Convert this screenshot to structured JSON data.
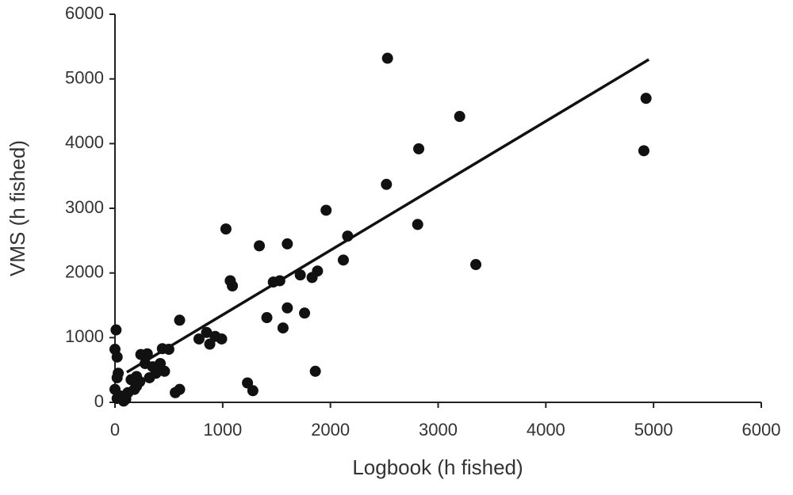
{
  "chart_data": {
    "type": "scatter",
    "x_label": "Logbook (h fished)",
    "y_label": "VMS (h fished)",
    "xlim": [
      0,
      6000
    ],
    "ylim": [
      0,
      6000
    ],
    "xticks": [
      0,
      1000,
      2000,
      3000,
      4000,
      5000,
      6000
    ],
    "yticks": [
      0,
      1000,
      2000,
      3000,
      4000,
      5000,
      6000
    ],
    "color": "#111111",
    "points": {
      "x": [
        2530,
        4930,
        4910,
        3200,
        2820,
        2520,
        2810,
        3350,
        1960,
        2160,
        2120,
        1030,
        1340,
        1600,
        1880,
        1830,
        1720,
        1530,
        1470,
        1070,
        1090,
        1600,
        1410,
        1760,
        1560,
        1860,
        1230,
        1280,
        600,
        850,
        930,
        990,
        780,
        880,
        440,
        300,
        240,
        500,
        280,
        420,
        460,
        380,
        320,
        200,
        150,
        230,
        180,
        120,
        60,
        20,
        10,
        0,
        20,
        30,
        20,
        0,
        50,
        100,
        600,
        560,
        80,
        200,
        350
      ],
      "y": [
        5320,
        4700,
        3890,
        4420,
        3920,
        3370,
        2750,
        2130,
        2970,
        2570,
        2200,
        2680,
        2420,
        2450,
        2030,
        1930,
        1970,
        1880,
        1860,
        1880,
        1800,
        1460,
        1310,
        1380,
        1150,
        480,
        300,
        180,
        1270,
        1080,
        1020,
        980,
        980,
        900,
        830,
        750,
        740,
        820,
        600,
        600,
        480,
        450,
        380,
        400,
        350,
        320,
        200,
        150,
        80,
        60,
        1120,
        820,
        700,
        450,
        380,
        200,
        100,
        50,
        200,
        150,
        20,
        250,
        550
      ]
    },
    "fit_line": {
      "x": [
        110,
        4956
      ],
      "y": [
        465,
        5300
      ]
    }
  }
}
